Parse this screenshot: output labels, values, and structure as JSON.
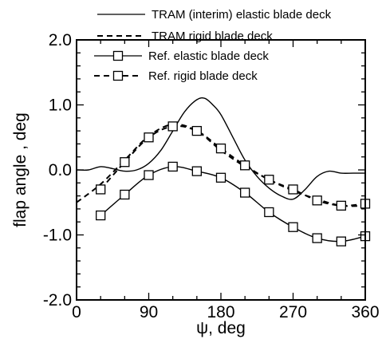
{
  "chart_data": {
    "type": "line",
    "xlabel": "ψ, deg",
    "ylabel": "flap angle , deg",
    "xlim": [
      0,
      360
    ],
    "ylim": [
      -2.0,
      2.0
    ],
    "x_ticks": [
      "0",
      "90",
      "180",
      "270",
      "360"
    ],
    "y_ticks": [
      "2.0",
      "1.0",
      "0.0",
      "-1.0",
      "-2.0"
    ],
    "grid": false,
    "legend_position": "top",
    "series": [
      {
        "name": "TRAM (interim) elastic blade deck",
        "style": "solid",
        "marker": "none",
        "x": [
          0,
          15,
          30,
          45,
          60,
          75,
          90,
          105,
          120,
          135,
          150,
          160,
          170,
          180,
          195,
          210,
          225,
          240,
          255,
          270,
          285,
          300,
          315,
          330,
          345,
          360
        ],
        "y": [
          0.0,
          0.0,
          0.05,
          0.02,
          -0.02,
          0.0,
          0.1,
          0.3,
          0.6,
          0.9,
          1.08,
          1.1,
          1.0,
          0.85,
          0.5,
          0.15,
          -0.1,
          -0.28,
          -0.4,
          -0.45,
          -0.3,
          -0.1,
          -0.02,
          -0.05,
          -0.05,
          -0.05
        ]
      },
      {
        "name": "TRAM rigid blade deck",
        "style": "dashed",
        "marker": "none",
        "x": [
          0,
          30,
          60,
          90,
          120,
          150,
          180,
          210,
          240,
          270,
          300,
          330,
          360
        ],
        "y": [
          -0.5,
          -0.22,
          0.15,
          0.52,
          0.7,
          0.6,
          0.3,
          0.05,
          -0.15,
          -0.32,
          -0.45,
          -0.55,
          -0.55
        ]
      },
      {
        "name": "Ref. elastic blade deck",
        "style": "solid",
        "marker": "square",
        "x": [
          30,
          60,
          90,
          120,
          150,
          180,
          210,
          240,
          270,
          300,
          330,
          360
        ],
        "y": [
          -0.7,
          -0.38,
          -0.08,
          0.05,
          -0.02,
          -0.12,
          -0.35,
          -0.65,
          -0.88,
          -1.05,
          -1.1,
          -1.02
        ]
      },
      {
        "name": "Ref. rigid blade deck",
        "style": "dashed",
        "marker": "square",
        "x": [
          30,
          60,
          90,
          120,
          150,
          180,
          210,
          240,
          270,
          300,
          330,
          360
        ],
        "y": [
          -0.3,
          0.12,
          0.5,
          0.67,
          0.6,
          0.33,
          0.07,
          -0.15,
          -0.3,
          -0.47,
          -0.55,
          -0.52
        ]
      }
    ]
  }
}
